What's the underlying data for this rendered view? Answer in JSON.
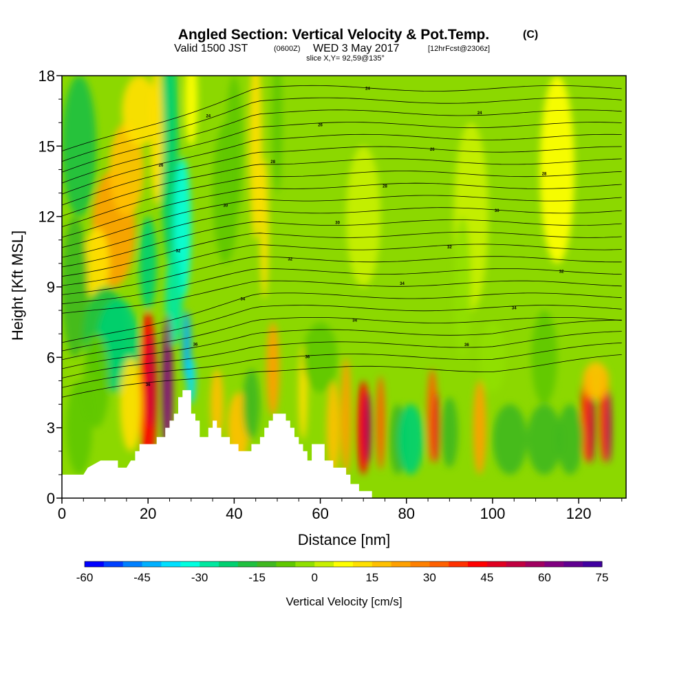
{
  "chart_data": {
    "type": "heatmap",
    "title": "Angled Section: Vertical Velocity & Pot.Temp.",
    "title_units": "(C)",
    "subtitle_prefix": "Valid 1500 JST",
    "subtitle_utc": "(0600Z)",
    "subtitle_date": "WED 3 May 2017",
    "subtitle_fcst": "[12hrFcst@2306z]",
    "slice_label": "slice X,Y= 92,59@135°",
    "xlabel": "Distance [nm]",
    "ylabel": "Height [Kft MSL]",
    "xlim": [
      0,
      131
    ],
    "ylim": [
      0,
      18
    ],
    "x_ticks": [
      0,
      20,
      40,
      60,
      80,
      100,
      120
    ],
    "y_ticks": [
      0,
      3,
      6,
      9,
      12,
      15,
      18
    ],
    "colorbar": {
      "label": "Vertical Velocity [cm/s]",
      "min": -60,
      "max": 75,
      "step": 5,
      "tick_labels": [
        "-60",
        "-45",
        "-30",
        "-15",
        "0",
        "15",
        "30",
        "45",
        "60",
        "75"
      ],
      "colors": [
        "#0000ff",
        "#0040ff",
        "#0080ff",
        "#00b0ff",
        "#00e0ff",
        "#00ffe0",
        "#00e8a0",
        "#00d070",
        "#20c040",
        "#40b820",
        "#60c800",
        "#90e000",
        "#c8f000",
        "#ffff00",
        "#ffe000",
        "#ffc000",
        "#ffa000",
        "#ff8000",
        "#ff6000",
        "#ff3000",
        "#ff0000",
        "#e00020",
        "#c00040",
        "#a00060",
        "#800080",
        "#600090",
        "#4000a0"
      ]
    },
    "terrain_top_kft": [
      [
        0,
        1.0
      ],
      [
        5,
        1.0
      ],
      [
        6,
        1.3
      ],
      [
        9,
        1.6
      ],
      [
        13,
        1.6
      ],
      [
        13,
        1.3
      ],
      [
        15,
        1.3
      ],
      [
        16,
        1.6
      ],
      [
        17,
        1.6
      ],
      [
        17,
        2.0
      ],
      [
        18,
        2.0
      ],
      [
        18,
        2.3
      ],
      [
        22,
        2.3
      ],
      [
        22,
        2.6
      ],
      [
        24,
        2.6
      ],
      [
        24,
        3.0
      ],
      [
        25,
        3.0
      ],
      [
        25,
        3.3
      ],
      [
        26,
        3.3
      ],
      [
        26,
        3.6
      ],
      [
        27,
        3.6
      ],
      [
        27,
        4.3
      ],
      [
        28,
        4.3
      ],
      [
        28,
        4.6
      ],
      [
        30,
        4.6
      ],
      [
        30,
        3.6
      ],
      [
        31,
        3.6
      ],
      [
        31,
        3.3
      ],
      [
        32,
        3.3
      ],
      [
        32,
        2.6
      ],
      [
        34,
        2.6
      ],
      [
        34,
        3.0
      ],
      [
        35,
        3.0
      ],
      [
        35,
        3.3
      ],
      [
        36,
        3.3
      ],
      [
        36,
        3.0
      ],
      [
        37,
        3.0
      ],
      [
        37,
        2.6
      ],
      [
        39,
        2.6
      ],
      [
        39,
        2.3
      ],
      [
        41,
        2.3
      ],
      [
        41,
        2.0
      ],
      [
        44,
        2.0
      ],
      [
        44,
        2.3
      ],
      [
        46,
        2.3
      ],
      [
        46,
        2.6
      ],
      [
        47,
        2.6
      ],
      [
        47,
        3.0
      ],
      [
        48,
        3.0
      ],
      [
        48,
        3.3
      ],
      [
        49,
        3.3
      ],
      [
        49,
        3.6
      ],
      [
        52,
        3.6
      ],
      [
        52,
        3.3
      ],
      [
        53,
        3.3
      ],
      [
        53,
        3.0
      ],
      [
        54,
        3.0
      ],
      [
        54,
        2.6
      ],
      [
        55,
        2.6
      ],
      [
        55,
        2.3
      ],
      [
        56,
        2.3
      ],
      [
        56,
        2.0
      ],
      [
        57,
        2.0
      ],
      [
        57,
        1.6
      ],
      [
        58,
        1.6
      ],
      [
        58,
        2.3
      ],
      [
        61,
        2.3
      ],
      [
        61,
        1.6
      ],
      [
        63,
        1.6
      ],
      [
        63,
        1.3
      ],
      [
        66,
        1.3
      ],
      [
        66,
        1.0
      ],
      [
        67,
        1.0
      ],
      [
        67,
        0.6
      ],
      [
        69,
        0.6
      ],
      [
        69,
        0.3
      ],
      [
        72,
        0.3
      ],
      [
        72,
        0.0
      ],
      [
        131,
        0.0
      ]
    ],
    "pot_temp_contour_labels": [
      "36",
      "36",
      "36",
      "36",
      "34",
      "34",
      "34",
      "34",
      "32",
      "32",
      "32",
      "32",
      "30",
      "30",
      "30",
      "28",
      "28",
      "28",
      "26",
      "26",
      "26",
      "24",
      "24",
      "24"
    ],
    "series": [
      {
        "name": "Vertical Velocity",
        "units": "cm/s"
      },
      {
        "name": "Pot.Temp.",
        "units": "C"
      }
    ]
  }
}
